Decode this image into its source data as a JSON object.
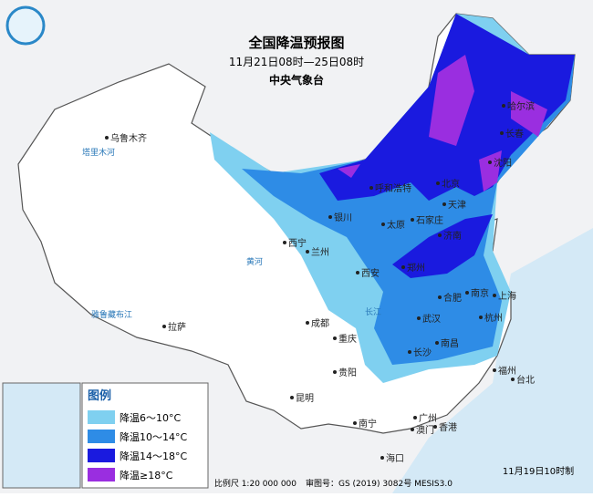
{
  "header": {
    "title": "全国降温预报图",
    "subtitle": "11月21日08时—25日08时",
    "agency": "中央气象台"
  },
  "legend": {
    "title": "图例",
    "items": [
      {
        "label": "降温6～10°C",
        "color": "#7fd0f0"
      },
      {
        "label": "降温10～14°C",
        "color": "#2e8ce6"
      },
      {
        "label": "降温14～18°C",
        "color": "#1a1adf"
      },
      {
        "label": "降温≥18°C",
        "color": "#9a2ee0"
      }
    ]
  },
  "cities": [
    "乌鲁木齐",
    "哈尔滨",
    "长春",
    "沈阳",
    "呼和浩特",
    "北京",
    "天津",
    "银川",
    "太原",
    "石家庄",
    "西宁",
    "兰州",
    "济南",
    "郑州",
    "西安",
    "合肥",
    "南京",
    "上海",
    "成都",
    "武汉",
    "杭州",
    "拉萨",
    "重庆",
    "长沙",
    "南昌",
    "贵阳",
    "福州",
    "台北",
    "昆明",
    "南宁",
    "广州",
    "香港",
    "澳门",
    "海口"
  ],
  "rivers": [
    "塔里木河",
    "雅鲁藏布江",
    "黄河",
    "长江"
  ],
  "footer": {
    "scale": "比例尺 1:20 000 000",
    "review": "审图号：GS (2019) 3082号 MESIS3.0",
    "issued": "11月19日10时制"
  }
}
